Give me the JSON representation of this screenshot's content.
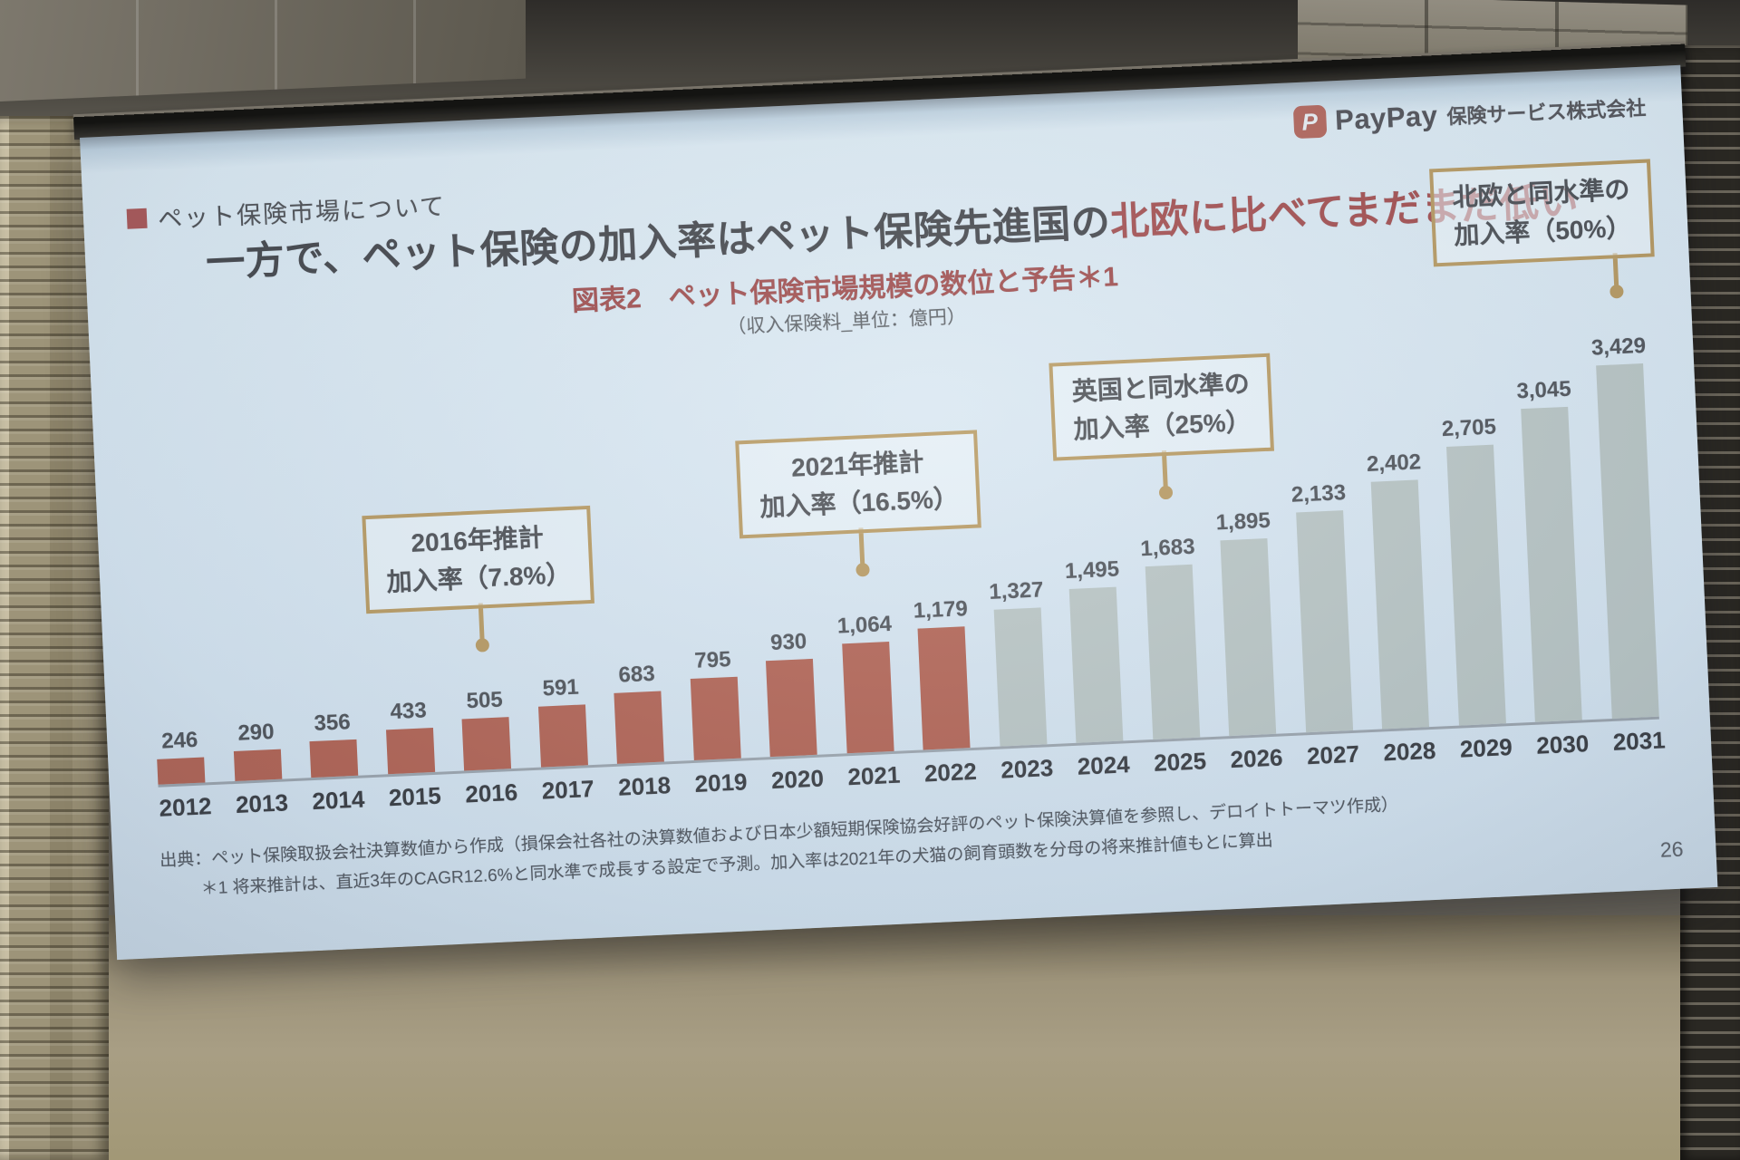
{
  "logo": {
    "icon_letter": "P",
    "brand": "PayPay",
    "company": "保険サービス株式会社"
  },
  "slide": {
    "section_label": "ペット保険市場について",
    "title_main": "一方で、ペット保険の加入率はペット保険先進国の",
    "title_highlight": "北欧に比べてまだまだ低い",
    "source_note": "出典：ペット保険取扱会社決算数値から作成（損保会社各社の決算数値および日本少額短期保険協会好評のペット保険決算値を参照し、デロイトトーマツ作成）",
    "footnote": "＊1 将来推計は、直近3年のCAGR12.6%と同水準で成長する設定で予測。加入率は2021年の犬猫の飼育頭数を分母の将来推計値もとに算出",
    "page_number": "26"
  },
  "chart_data": {
    "type": "bar",
    "title": "図表2　ペット保険市場規模の数位と予告＊1",
    "unit_note": "（収入保険料_単位：億円）",
    "categories": [
      "2012",
      "2013",
      "2014",
      "2015",
      "2016",
      "2017",
      "2018",
      "2019",
      "2020",
      "2021",
      "2022",
      "2023",
      "2024",
      "2025",
      "2026",
      "2027",
      "2028",
      "2029",
      "2030",
      "2031"
    ],
    "values": [
      246,
      290,
      356,
      433,
      505,
      591,
      683,
      795,
      930,
      1064,
      1179,
      1327,
      1495,
      1683,
      1895,
      2133,
      2402,
      2705,
      3045,
      3429
    ],
    "value_labels": [
      "246",
      "290",
      "356",
      "433",
      "505",
      "591",
      "683",
      "795",
      "930",
      "1,064",
      "1,179",
      "1,327",
      "1,495",
      "1,683",
      "1,895",
      "2,133",
      "2,402",
      "2,705",
      "3,045",
      "3,429"
    ],
    "actual_count": 11,
    "colors": {
      "actual_bars": "#b05f4f",
      "forecast_bars": "#b7c3c2",
      "callout_accent": "#b5965c",
      "title_highlight": "#a04849"
    },
    "xlabel": "",
    "ylabel": "",
    "ylim": [
      0,
      3500
    ],
    "grid": false,
    "legend": "none",
    "callouts": [
      {
        "lines": [
          "2016年推計",
          "加入率（7.8%）"
        ],
        "target": "2016",
        "line_length": 46,
        "dx": 0
      },
      {
        "lines": [
          "2021年推計",
          "加入率（16.5%）"
        ],
        "target": "2021",
        "line_length": 46,
        "dx": 0
      },
      {
        "lines": [
          "英国と同水準の",
          "加入率（25%）"
        ],
        "target": "2025",
        "line_length": 46,
        "dx": 0
      },
      {
        "lines": [
          "北欧と同水準の",
          "加入率（50%）"
        ],
        "target": "2031",
        "line_length": 42,
        "dx": -78
      }
    ]
  }
}
